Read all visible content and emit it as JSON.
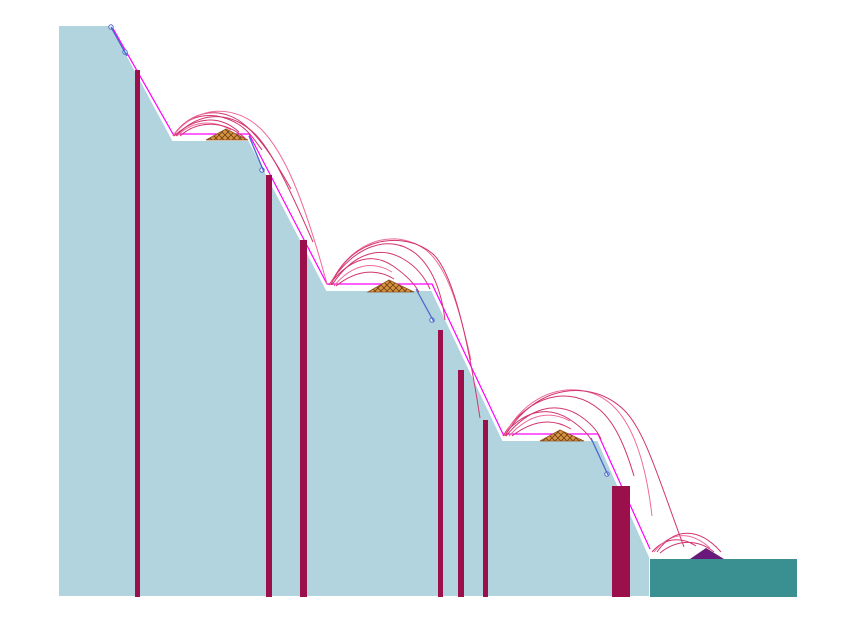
{
  "colors": {
    "background": "#ffffff",
    "slope_body": "#b2d4df",
    "slope_outline": "#ffffff",
    "slope_surface_line": "#ff00ff",
    "vertical_column": "#9b0f4b",
    "trajectory": "#d1356f",
    "trajectory_alt": "#f06a9a",
    "protective_cover": "#d9943f",
    "cover_pattern": "#6b3f16",
    "marker": "#4b66cc",
    "retaining_block": "#3a8f90",
    "end_cap": "#6a187a"
  },
  "labels": []
}
